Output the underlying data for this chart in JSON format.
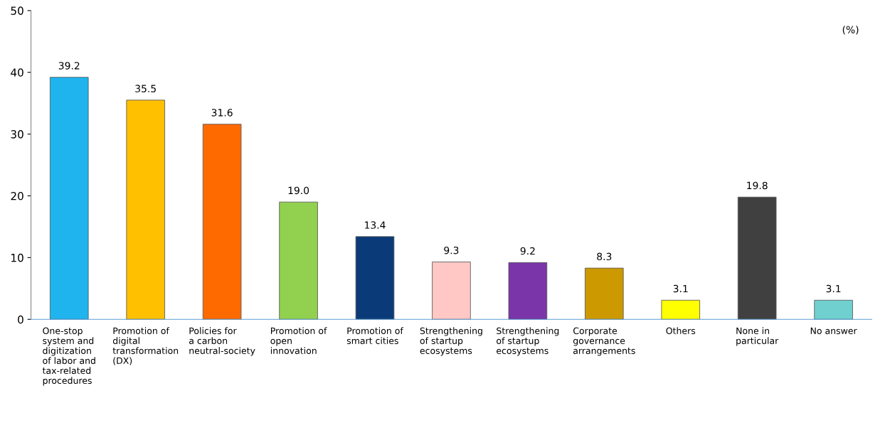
{
  "chart_data": {
    "type": "bar",
    "categories": [
      "One-stop system and digitization of labor and tax-related procedures",
      "Promotion of digital transformation (DX)",
      "Policies for a carbon neutral-society",
      "Promotion of open innovation",
      "Promotion of smart cities",
      "Strengthening of startup ecosystems",
      "Strengthening of startup ecosystems",
      "Corporate governance arrangements",
      "Others",
      "None in particular",
      "No answer"
    ],
    "values": [
      39.2,
      35.5,
      31.6,
      19.0,
      13.4,
      9.3,
      9.2,
      8.3,
      3.1,
      19.8,
      3.1
    ],
    "colors": [
      "#1fb4ee",
      "#ffc000",
      "#ff6a00",
      "#92d050",
      "#0b3a78",
      "#ffc8c4",
      "#7a35a8",
      "#cc9900",
      "#ffff00",
      "#404040",
      "#70d0d0"
    ],
    "value_labels": [
      "39.2",
      "35.5",
      "31.6",
      "19.0",
      "13.4",
      "9.3",
      "9.2",
      "8.3",
      "3.1",
      "19.8",
      "3.1"
    ],
    "ylim": [
      0,
      50
    ],
    "yticks": [
      0,
      10,
      20,
      30,
      40,
      50
    ],
    "grid": false,
    "legend": false,
    "annotations": [
      "(%)"
    ]
  }
}
